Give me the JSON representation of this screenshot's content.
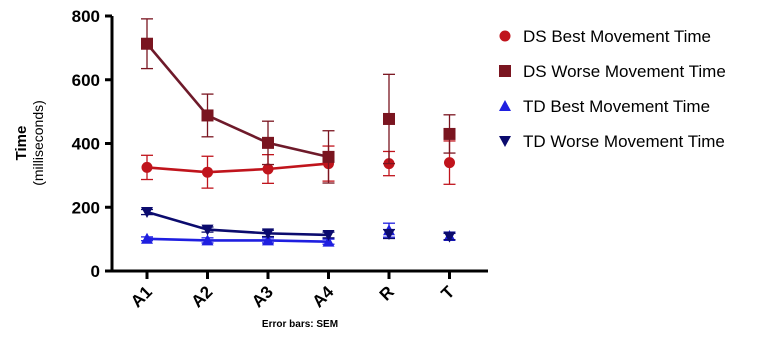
{
  "chart_data": {
    "type": "line",
    "categories": [
      "A1",
      "A2",
      "A3",
      "A4",
      "R",
      "T"
    ],
    "ylabel": "Time",
    "ylabel_sub": "(milliseconds)",
    "xlabel": "",
    "footnote": "Error bars: SEM",
    "ylim": [
      0,
      800
    ],
    "yticks": [
      "0",
      "200",
      "400",
      "600",
      "800"
    ],
    "grid": false,
    "legend_position": "right",
    "series": [
      {
        "name": "DS Best Movement Time",
        "marker": "circle",
        "color": "#c0141c",
        "line_color": "#c0141c",
        "values": [
          325,
          310,
          320,
          337,
          337,
          340
        ],
        "err": [
          38,
          50,
          45,
          55,
          38,
          68
        ],
        "connected_count": 4
      },
      {
        "name": "DS Worse Movement Time",
        "marker": "square",
        "color": "#7a1520",
        "line_color": "#6e1a2a",
        "values": [
          713,
          488,
          402,
          358,
          477,
          430
        ],
        "err": [
          78,
          67,
          68,
          82,
          140,
          60
        ],
        "connected_count": 4
      },
      {
        "name": "TD Best Movement Time",
        "marker": "triangle-up",
        "color": "#1f1fe0",
        "line_color": "#1f1fe0",
        "values": [
          101,
          96,
          96,
          92,
          128,
          110
        ],
        "err": [
          6,
          8,
          8,
          8,
          22,
          12
        ],
        "connected_count": 4
      },
      {
        "name": "TD Worse Movement Time",
        "marker": "triangle-down",
        "color": "#0b0b6e",
        "line_color": "#0b0b6e",
        "values": [
          185,
          130,
          118,
          113,
          116,
          108
        ],
        "err": [
          8,
          8,
          10,
          9,
          14,
          10
        ],
        "connected_count": 4
      }
    ]
  }
}
